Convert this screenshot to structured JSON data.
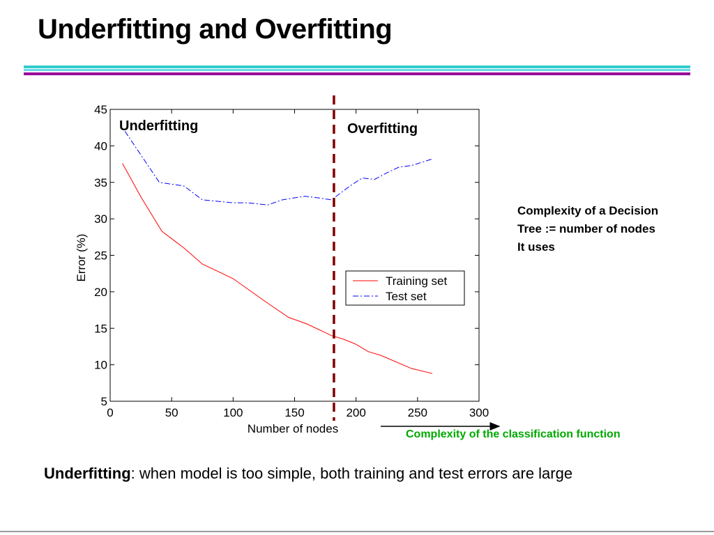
{
  "slide": {
    "title": "Underfitting and Overfitting",
    "side_note": [
      "Complexity of a Decision",
      "Tree := number of nodes",
      "It uses"
    ],
    "complexity_label": "Complexity of the classification function",
    "bottom_term": "Underfitting",
    "bottom_rest": ": when model is too simple, both training and test errors are large"
  },
  "chart_data": {
    "type": "line",
    "xlabel": "Number of nodes",
    "ylabel": "Error (%)",
    "xlim": [
      0,
      300
    ],
    "ylim": [
      5,
      45
    ],
    "xticks": [
      0,
      50,
      100,
      150,
      200,
      250,
      300
    ],
    "yticks": [
      5,
      10,
      15,
      20,
      25,
      30,
      35,
      40,
      45
    ],
    "grid": false,
    "legend_position": "right-middle",
    "series": [
      {
        "name": "Training set",
        "color": "#ff0000",
        "style": "solid",
        "x": [
          10,
          25,
          42,
          60,
          75,
          90,
          100,
          125,
          145,
          160,
          180,
          190,
          200,
          210,
          220,
          245,
          262
        ],
        "y": [
          37.6,
          33,
          28.3,
          26,
          23.8,
          22.6,
          21.8,
          18.8,
          16.5,
          15.6,
          14,
          13.5,
          12.8,
          11.8,
          11.3,
          9.5,
          8.8
        ]
      },
      {
        "name": "Test set",
        "color": "#0000ff",
        "style": "dashdot",
        "x": [
          12,
          30,
          40,
          60,
          75,
          100,
          112,
          128,
          140,
          158,
          168,
          180,
          195,
          205,
          215,
          225,
          235,
          245,
          262
        ],
        "y": [
          42,
          37.5,
          35,
          34.5,
          32.6,
          32.2,
          32.2,
          31.9,
          32.6,
          33.1,
          32.9,
          32.6,
          34.5,
          35.6,
          35.4,
          36.3,
          37.1,
          37.3,
          38.2
        ]
      }
    ],
    "divider_x": 182,
    "divider_color": "#800000",
    "annotations": [
      "Underfitting",
      "Overfitting"
    ]
  }
}
